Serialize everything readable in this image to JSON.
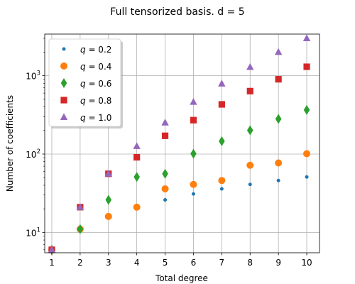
{
  "chart_data": {
    "type": "scatter",
    "title": "Full tensorized basis. d = 5",
    "xlabel": "Total degree",
    "ylabel": "Number of coefficients",
    "xscale": "linear",
    "yscale": "log",
    "xlim": [
      0.75,
      10.45
    ],
    "ylim": [
      5.5,
      3400
    ],
    "x": [
      1,
      2,
      3,
      4,
      5,
      6,
      7,
      8,
      9,
      10
    ],
    "x_ticks": [
      "1",
      "2",
      "3",
      "4",
      "5",
      "6",
      "7",
      "8",
      "9",
      "10"
    ],
    "y_ticks": [
      {
        "value": 10,
        "base": "10",
        "exp": "1"
      },
      {
        "value": 100,
        "base": "10",
        "exp": "2"
      },
      {
        "value": 1000,
        "base": "10",
        "exp": "3"
      }
    ],
    "grid": true,
    "legend_position": "top-left",
    "series": [
      {
        "name": "q = 0.2",
        "q": "0.2",
        "marker": "circle-small",
        "color": "#1f77b4",
        "values": [
          6,
          11,
          16,
          21,
          26,
          31,
          36,
          41,
          46,
          51
        ]
      },
      {
        "name": "q = 0.4",
        "q": "0.4",
        "marker": "circle",
        "color": "#ff7f0e",
        "values": [
          6,
          11,
          16,
          21,
          36,
          41,
          46,
          72,
          77,
          101
        ]
      },
      {
        "name": "q = 0.6",
        "q": "0.6",
        "marker": "diamond",
        "color": "#2ca02c",
        "values": [
          6,
          11,
          26,
          51,
          56,
          101,
          146,
          201,
          281,
          366
        ]
      },
      {
        "name": "q = 0.8",
        "q": "0.8",
        "marker": "square",
        "color": "#d62728",
        "values": [
          6,
          21,
          56,
          91,
          171,
          271,
          431,
          636,
          901,
          1301
        ]
      },
      {
        "name": "q = 1.0",
        "q": "1.0",
        "marker": "triangle",
        "color": "#9467bd",
        "values": [
          6,
          21,
          56,
          126,
          252,
          462,
          792,
          1287,
          2002,
          3003
        ]
      }
    ]
  }
}
